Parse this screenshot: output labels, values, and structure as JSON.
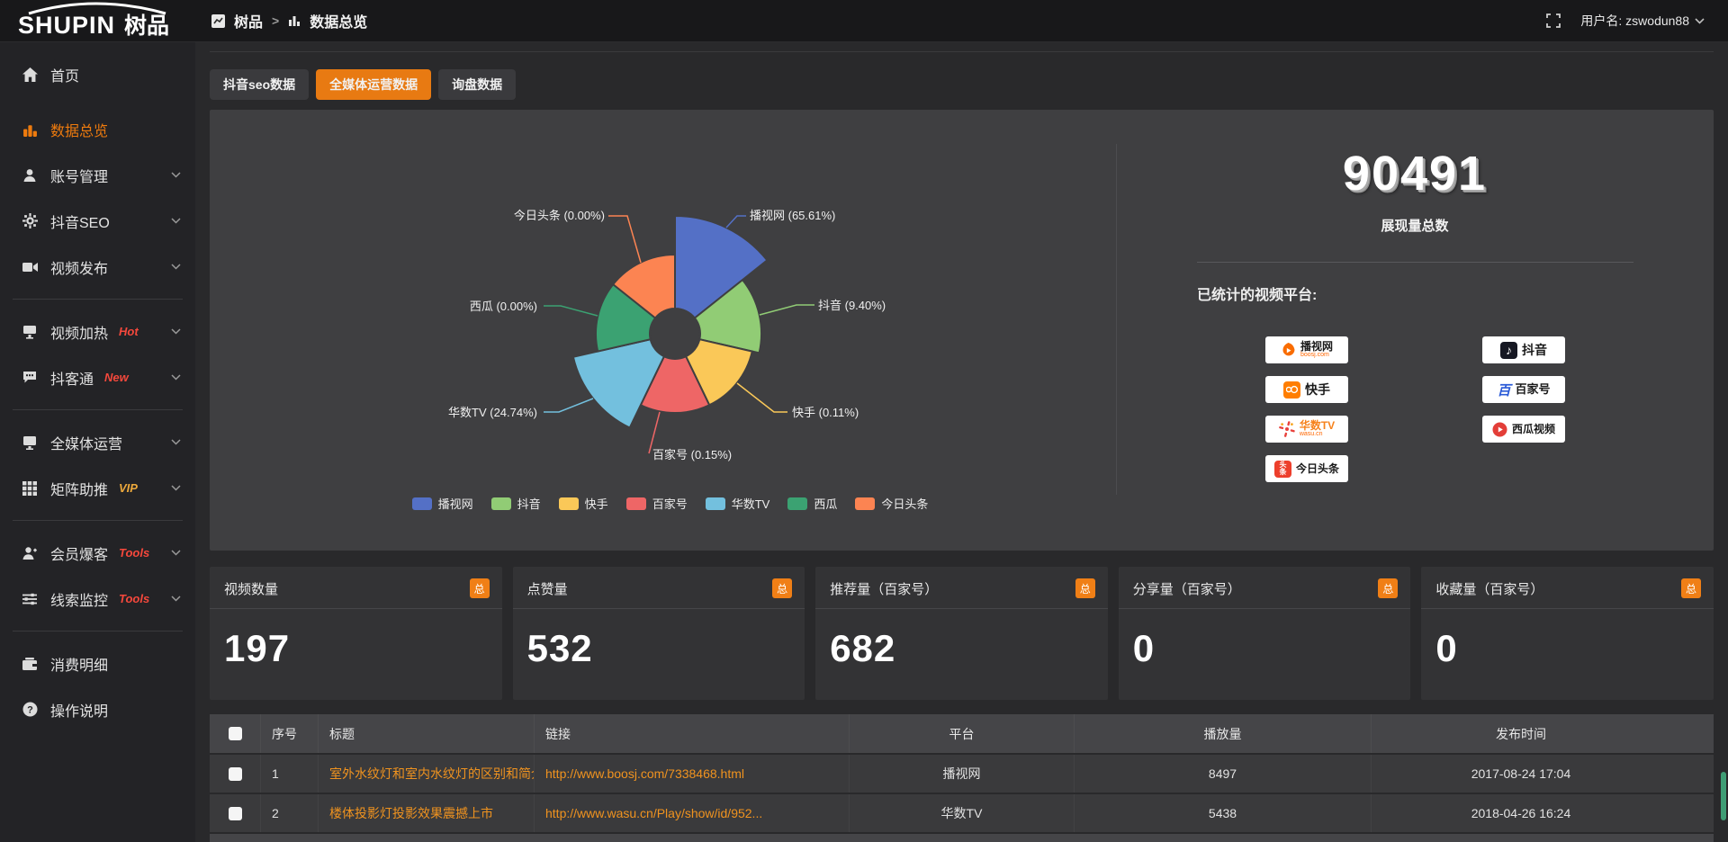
{
  "topbar": {
    "logo": {
      "en": "SHUPIN",
      "cn": "树品"
    },
    "breadcrumb": {
      "item1": "树品",
      "sep": ">",
      "item2": "数据总览"
    },
    "username": "用户名: zswodun88"
  },
  "sidebar": {
    "items": [
      {
        "label": "首页",
        "icon": "home-icon"
      },
      {
        "label": "数据总览",
        "icon": "bar-chart-icon",
        "active": true
      },
      {
        "label": "账号管理",
        "icon": "user-icon"
      },
      {
        "label": "抖音SEO",
        "icon": "gear-icon"
      },
      {
        "label": "视频发布",
        "icon": "video-icon"
      },
      {
        "label": "视频加热",
        "icon": "heat-icon",
        "badge": "Hot"
      },
      {
        "label": "抖客通",
        "icon": "chat-icon",
        "badge": "New"
      },
      {
        "label": "全媒体运营",
        "icon": "monitor-icon"
      },
      {
        "label": "矩阵助推",
        "icon": "grid-icon",
        "badge": "VIP"
      },
      {
        "label": "会员爆客",
        "icon": "user-plus-icon",
        "badge": "Tools"
      },
      {
        "label": "线索监控",
        "icon": "sliders-icon",
        "badge": "Tools"
      },
      {
        "label": "消费明细",
        "icon": "wallet-icon"
      },
      {
        "label": "操作说明",
        "icon": "question-icon"
      }
    ],
    "badge_colors": {
      "hot": "#f5483c",
      "new": "#f5483c",
      "vip": "#eda93c",
      "tools": "#f5483c"
    }
  },
  "tabs": [
    {
      "label": "抖音seo数据",
      "active": false
    },
    {
      "label": "全媒体运营数据",
      "active": true
    },
    {
      "label": "询盘数据",
      "active": false
    }
  ],
  "chart_data": {
    "type": "pie",
    "variant": "nightingale-rose",
    "categories": [
      "播视网",
      "抖音",
      "快手",
      "百家号",
      "华数TV",
      "西瓜",
      "今日头条"
    ],
    "values": [
      65.61,
      9.4,
      0.11,
      0.15,
      24.74,
      0.0,
      0.0
    ],
    "labels": [
      "播视网 (65.61%)",
      "抖音 (9.40%)",
      "快手 (0.11%)",
      "百家号 (0.15%)",
      "华数TV (24.74%)",
      "西瓜 (0.00%)",
      "今日头条 (0.00%)"
    ],
    "colors": [
      "#5470c6",
      "#91cc75",
      "#fac858",
      "#ee6666",
      "#73c0de",
      "#3ba272",
      "#fc8452"
    ],
    "legend_position": "bottom",
    "legend": [
      "播视网",
      "抖音",
      "快手",
      "百家号",
      "华数TV",
      "西瓜",
      "今日头条"
    ]
  },
  "overview": {
    "total_value": "90491",
    "total_label": "展现量总数",
    "platforms_label": "已统计的视频平台:",
    "platforms": [
      {
        "name": "播视网",
        "sub": "boosj.com"
      },
      {
        "name": "快手"
      },
      {
        "name": "华数TV",
        "sub": "wasu.cn"
      },
      {
        "name": "今日头条"
      },
      {
        "name": "抖音"
      },
      {
        "name": "百家号"
      },
      {
        "name": "西瓜视频"
      }
    ]
  },
  "stat_cards": [
    {
      "title": "视频数量",
      "badge": "总",
      "value": "197"
    },
    {
      "title": "点赞量",
      "badge": "总",
      "value": "532"
    },
    {
      "title": "推荐量（百家号）",
      "badge": "总",
      "value": "682"
    },
    {
      "title": "分享量（百家号）",
      "badge": "总",
      "value": "0"
    },
    {
      "title": "收藏量（百家号）",
      "badge": "总",
      "value": "0"
    }
  ],
  "table": {
    "headers": {
      "index": "序号",
      "title": "标题",
      "link": "链接",
      "platform": "平台",
      "plays": "播放量",
      "time": "发布时间"
    },
    "rows": [
      {
        "index": "1",
        "title": "室外水纹灯和室内水纹灯的区别和简介",
        "link": "http://www.boosj.com/7338468.html",
        "platform": "播视网",
        "plays": "8497",
        "time": "2017-08-24 17:04"
      },
      {
        "index": "2",
        "title": "楼体投影灯投影效果震撼上市",
        "link": "http://www.wasu.cn/Play/show/id/952...",
        "platform": "华数TV",
        "plays": "5438",
        "time": "2018-04-26 16:24"
      }
    ]
  },
  "colors": {
    "accent": "#e87a12",
    "link": "#f0931f",
    "badge": "#f07f16"
  }
}
